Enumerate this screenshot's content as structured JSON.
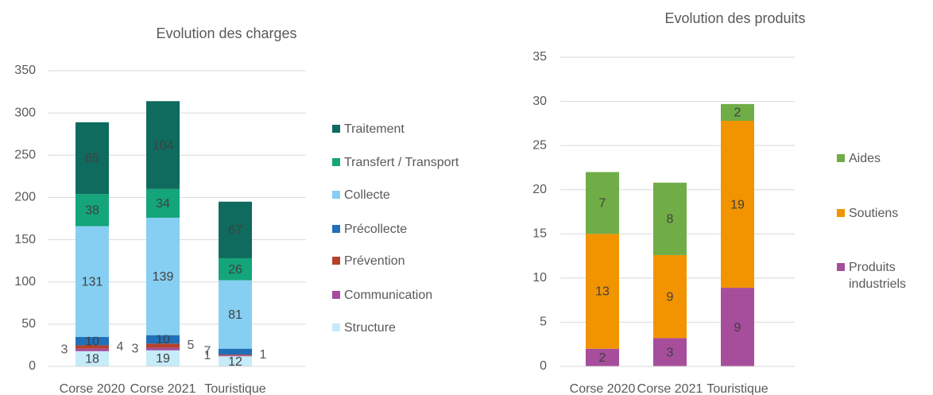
{
  "chart_data": [
    {
      "type": "bar",
      "stacked": true,
      "title": "Evolution des charges",
      "categories": [
        "Corse 2020",
        "Corse 2021",
        "Touristique"
      ],
      "series": [
        {
          "name": "Structure",
          "color": "#c6ebf9",
          "values": [
            18,
            19,
            12
          ]
        },
        {
          "name": "Communication",
          "color": "#a64d9b",
          "values": [
            3,
            3,
            1
          ]
        },
        {
          "name": "Prévention",
          "color": "#b3422b",
          "values": [
            4,
            5,
            1
          ]
        },
        {
          "name": "Précollecte",
          "color": "#1f70b8",
          "values": [
            10,
            10,
            7
          ]
        },
        {
          "name": "Collecte",
          "color": "#86cff2",
          "values": [
            131,
            139,
            81
          ]
        },
        {
          "name": "Transfert / Transport",
          "color": "#14a57a",
          "values": [
            38,
            34,
            26
          ]
        },
        {
          "name": "Traitement",
          "color": "#0f6b5e",
          "values": [
            85,
            104,
            67
          ]
        }
      ],
      "ylim": [
        0,
        350
      ],
      "yticks": [
        0,
        50,
        100,
        150,
        200,
        250,
        300,
        350
      ],
      "grid": true,
      "legend": "right"
    },
    {
      "type": "bar",
      "stacked": true,
      "title": "Evolution des produits",
      "categories": [
        "Corse 2020",
        "Corse 2021",
        "Touristique"
      ],
      "series": [
        {
          "name": "Produits industriels",
          "color": "#a64d9b",
          "values": [
            2,
            3.2,
            8.9
          ],
          "value_labels": [
            "2",
            "3",
            "9"
          ]
        },
        {
          "name": "Soutiens",
          "color": "#f29400",
          "values": [
            13,
            9.4,
            18.9
          ],
          "value_labels": [
            "13",
            "9",
            "19"
          ]
        },
        {
          "name": "Aides",
          "color": "#70ad47",
          "values": [
            7,
            8.2,
            1.9
          ],
          "value_labels": [
            "7",
            "8",
            "2"
          ]
        }
      ],
      "ylim": [
        0,
        35
      ],
      "yticks": [
        0,
        5,
        10,
        15,
        20,
        25,
        30,
        35
      ],
      "grid": true,
      "legend": "right"
    }
  ]
}
